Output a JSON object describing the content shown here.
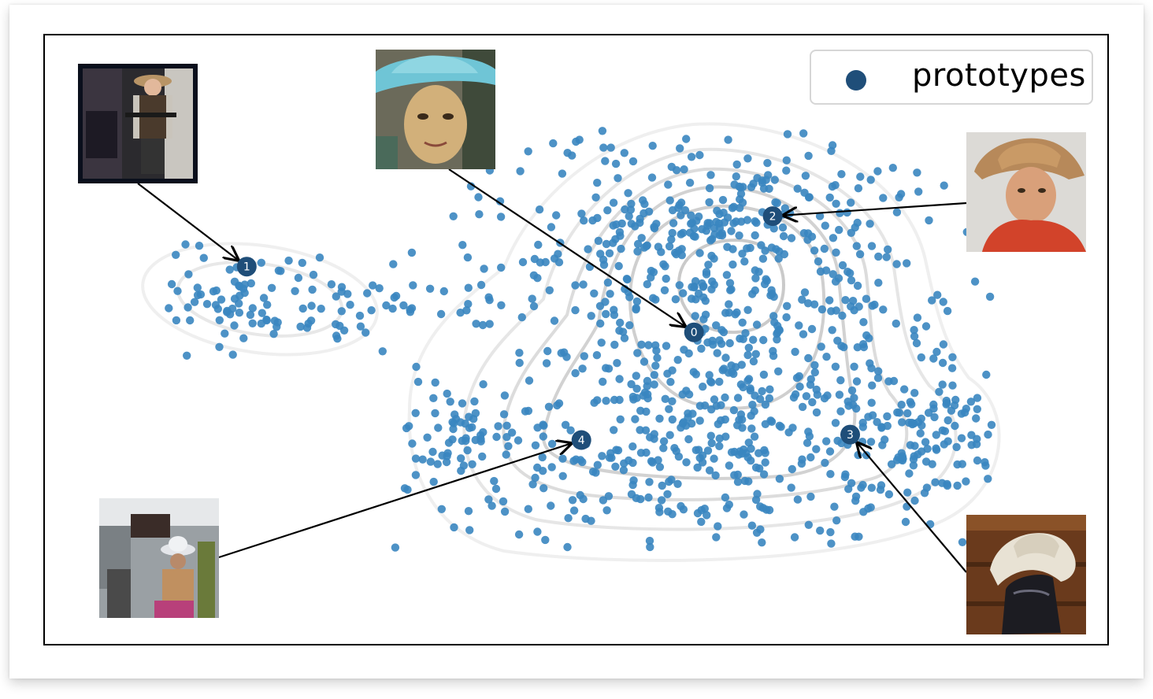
{
  "chart_data": {
    "type": "scatter",
    "title": "",
    "xlabel": "",
    "ylabel": "",
    "grid": false,
    "legend": {
      "placement": "top-right",
      "entries": [
        {
          "label": "prototypes",
          "color": "#1f4e79"
        }
      ]
    },
    "series": [
      {
        "role": "embeddings",
        "color": "#3a86c0",
        "count": 1200
      },
      {
        "name": "prototypes",
        "color": "#1f4e79"
      }
    ],
    "prototypes": [
      {
        "id": "0",
        "x": 0.611,
        "y": 0.512
      },
      {
        "id": "1",
        "x": 0.19,
        "y": 0.62
      },
      {
        "id": "2",
        "x": 0.685,
        "y": 0.703
      },
      {
        "id": "3",
        "x": 0.758,
        "y": 0.344
      },
      {
        "id": "4",
        "x": 0.505,
        "y": 0.335
      }
    ],
    "density_contours": true,
    "annotations": [
      {
        "prototype": "0",
        "image": "woman-in-light-blue-cowboy-hat"
      },
      {
        "prototype": "1",
        "image": "child-in-cowboy-costume-with-toy-gun"
      },
      {
        "prototype": "2",
        "image": "man-in-straw-cowboy-hat"
      },
      {
        "prototype": "3",
        "image": "cowboy-hat-on-boot"
      },
      {
        "prototype": "4",
        "image": "street-crowd-with-hats"
      }
    ]
  }
}
